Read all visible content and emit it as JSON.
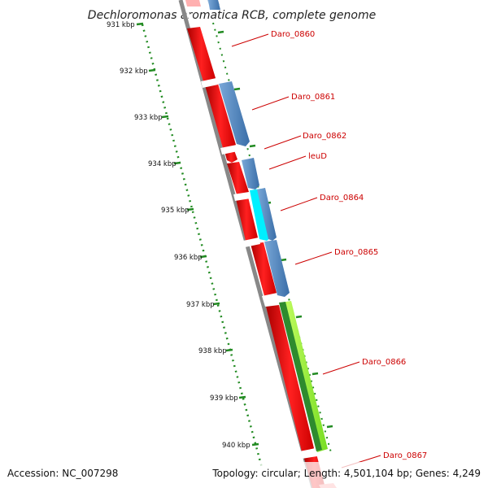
{
  "title": "Dechloromonas aromatica RCB, complete genome",
  "footer": {
    "accession": "Accession: NC_007298",
    "topology": "Topology: circular; Length: 4,501,104 bp; Genes: 4,249"
  },
  "scale_ticks": [
    "931 kbp",
    "932 kbp",
    "933 kbp",
    "934 kbp",
    "935 kbp",
    "936 kbp",
    "937 kbp",
    "938 kbp",
    "939 kbp",
    "940 kbp"
  ],
  "gene_labels": [
    "Daro_0860",
    "Daro_0861",
    "Daro_0862",
    "leuD",
    "Daro_0864",
    "Daro_0865",
    "Daro_0866",
    "Daro_0867"
  ],
  "colors": {
    "forward_cds": "#ff1010",
    "reverse_cds": "#4a86c0",
    "highlight_cds": "#00ffff",
    "gc_skew": "#99ff33",
    "gc_dark": "#2e8b2e",
    "backbone": "#888888",
    "scale": "#228b22",
    "label": "#cc0000"
  }
}
